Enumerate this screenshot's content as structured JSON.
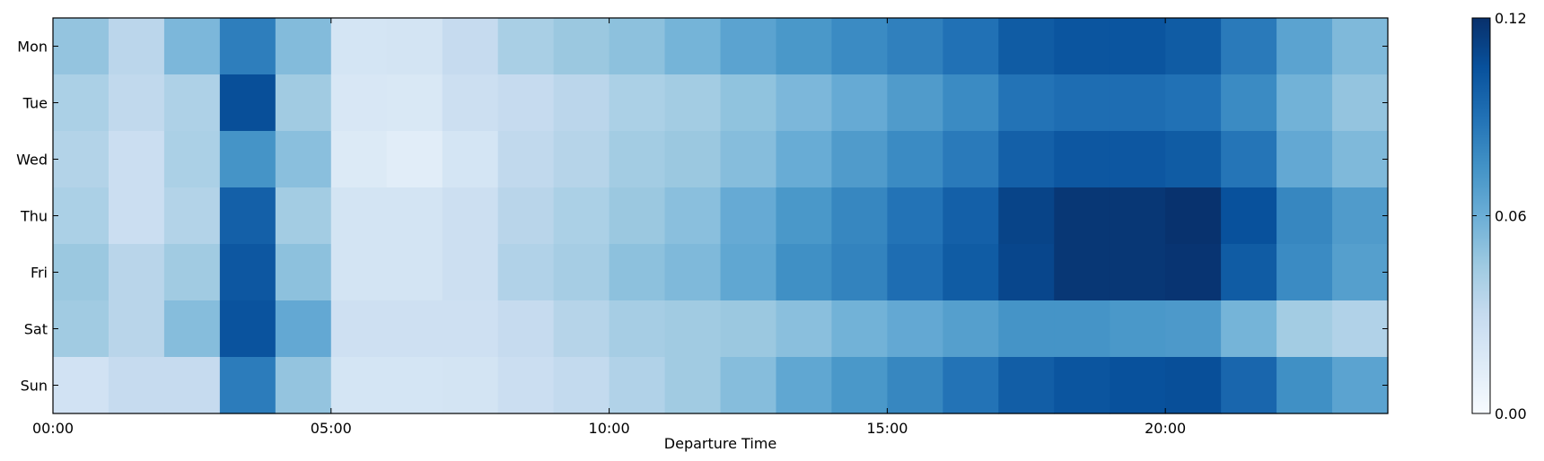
{
  "chart_data": {
    "type": "heatmap",
    "title": "",
    "xlabel": "Departure Time",
    "ylabel": "",
    "x_tick_labels": [
      "00:00",
      "05:00",
      "10:00",
      "15:00",
      "20:00"
    ],
    "x_tick_hours": [
      0,
      5,
      10,
      15,
      20
    ],
    "x_range": [
      0,
      24
    ],
    "bin_width_hours": 1,
    "rows": [
      "Mon",
      "Tue",
      "Wed",
      "Thu",
      "Fri",
      "Sat",
      "Sun"
    ],
    "colormap": "Blues",
    "colorbar": {
      "min": 0.0,
      "max": 0.12,
      "tick_values": [
        0.0,
        0.06,
        0.12
      ],
      "tick_labels": [
        "0.00",
        "0.06",
        "0.12"
      ]
    },
    "values": [
      [
        0.048,
        0.034,
        0.055,
        0.084,
        0.053,
        0.021,
        0.022,
        0.03,
        0.041,
        0.046,
        0.05,
        0.057,
        0.066,
        0.072,
        0.078,
        0.083,
        0.09,
        0.1,
        0.103,
        0.103,
        0.1,
        0.086,
        0.066,
        0.054
      ],
      [
        0.04,
        0.032,
        0.039,
        0.106,
        0.044,
        0.019,
        0.018,
        0.026,
        0.03,
        0.034,
        0.04,
        0.043,
        0.049,
        0.055,
        0.062,
        0.07,
        0.078,
        0.089,
        0.092,
        0.092,
        0.09,
        0.078,
        0.058,
        0.048
      ],
      [
        0.037,
        0.027,
        0.04,
        0.074,
        0.051,
        0.016,
        0.013,
        0.021,
        0.032,
        0.036,
        0.043,
        0.046,
        0.052,
        0.061,
        0.07,
        0.078,
        0.086,
        0.098,
        0.102,
        0.102,
        0.1,
        0.088,
        0.063,
        0.054
      ],
      [
        0.04,
        0.027,
        0.037,
        0.098,
        0.043,
        0.022,
        0.022,
        0.026,
        0.035,
        0.04,
        0.046,
        0.051,
        0.062,
        0.072,
        0.08,
        0.089,
        0.098,
        0.111,
        0.117,
        0.117,
        0.119,
        0.105,
        0.08,
        0.07
      ],
      [
        0.046,
        0.035,
        0.044,
        0.102,
        0.05,
        0.022,
        0.022,
        0.026,
        0.038,
        0.042,
        0.05,
        0.054,
        0.064,
        0.076,
        0.082,
        0.092,
        0.1,
        0.11,
        0.117,
        0.117,
        0.118,
        0.1,
        0.078,
        0.068
      ],
      [
        0.044,
        0.035,
        0.052,
        0.104,
        0.063,
        0.025,
        0.025,
        0.025,
        0.03,
        0.036,
        0.042,
        0.044,
        0.046,
        0.051,
        0.058,
        0.063,
        0.068,
        0.074,
        0.074,
        0.072,
        0.071,
        0.057,
        0.043,
        0.038
      ],
      [
        0.023,
        0.03,
        0.03,
        0.085,
        0.048,
        0.021,
        0.021,
        0.022,
        0.027,
        0.031,
        0.038,
        0.044,
        0.052,
        0.064,
        0.072,
        0.08,
        0.089,
        0.099,
        0.103,
        0.105,
        0.106,
        0.095,
        0.076,
        0.066
      ]
    ]
  }
}
